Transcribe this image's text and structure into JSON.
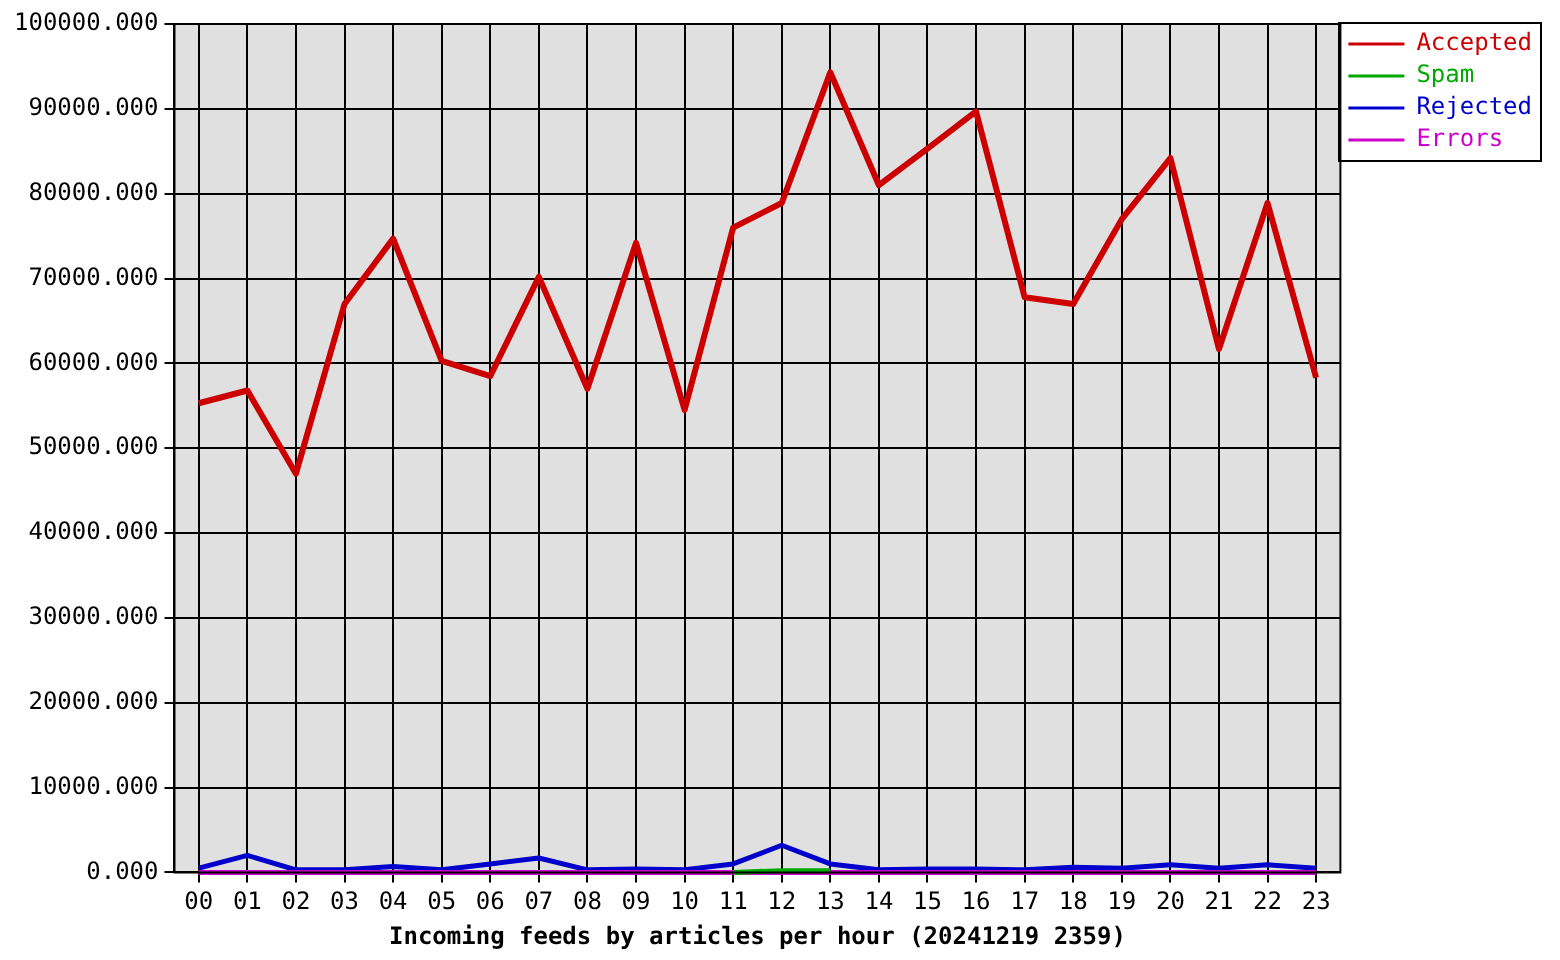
{
  "chart_data": {
    "type": "line",
    "xlabel": "Incoming feeds by articles per hour (20241219 2359)",
    "categories": [
      "00",
      "01",
      "02",
      "03",
      "04",
      "05",
      "06",
      "07",
      "08",
      "09",
      "10",
      "11",
      "12",
      "13",
      "14",
      "15",
      "16",
      "17",
      "18",
      "19",
      "20",
      "21",
      "22",
      "23"
    ],
    "series": [
      {
        "name": "Accepted",
        "color": "#cc0000",
        "values": [
          55300,
          56800,
          47000,
          67000,
          74700,
          60300,
          58500,
          70200,
          57000,
          74200,
          54500,
          76000,
          78900,
          94300,
          81000,
          85300,
          89700,
          67800,
          67000,
          77000,
          84200,
          61700,
          78900,
          58300
        ]
      },
      {
        "name": "Spam",
        "color": "#00aa00",
        "values": [
          null,
          null,
          null,
          null,
          null,
          null,
          null,
          null,
          null,
          null,
          null,
          0,
          200,
          200,
          null,
          null,
          null,
          null,
          null,
          null,
          null,
          null,
          null,
          null
        ]
      },
      {
        "name": "Rejected",
        "color": "#0000cc",
        "values": [
          500,
          2000,
          300,
          300,
          700,
          300,
          1000,
          1700,
          300,
          400,
          300,
          1000,
          3200,
          1000,
          300,
          400,
          400,
          300,
          600,
          500,
          900,
          500,
          900,
          500
        ]
      },
      {
        "name": "Errors",
        "color": "#cc00cc",
        "values": [
          0,
          0,
          0,
          0,
          0,
          0,
          0,
          0,
          0,
          0,
          0,
          0,
          0,
          0,
          0,
          0,
          0,
          0,
          0,
          0,
          0,
          0,
          0,
          0
        ]
      }
    ],
    "ylim": [
      0,
      100000
    ],
    "yticks": [
      {
        "value": 0,
        "label": "0.000"
      },
      {
        "value": 10000,
        "label": "10000.000"
      },
      {
        "value": 20000,
        "label": "20000.000"
      },
      {
        "value": 30000,
        "label": "30000.000"
      },
      {
        "value": 40000,
        "label": "40000.000"
      },
      {
        "value": 50000,
        "label": "50000.000"
      },
      {
        "value": 60000,
        "label": "60000.000"
      },
      {
        "value": 70000,
        "label": "70000.000"
      },
      {
        "value": 80000,
        "label": "80000.000"
      },
      {
        "value": 90000,
        "label": "90000.000"
      },
      {
        "value": 100000,
        "label": "100000.000"
      }
    ],
    "grid": true,
    "legend": "right",
    "marker": "none",
    "line_style": "solid"
  }
}
